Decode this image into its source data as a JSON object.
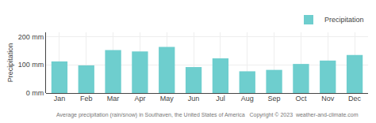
{
  "chart_data": {
    "type": "bar",
    "ylabel": "Precipitation",
    "categories": [
      "Jan",
      "Feb",
      "Mar",
      "Apr",
      "May",
      "Jun",
      "Jul",
      "Aug",
      "Sep",
      "Oct",
      "Nov",
      "Dec"
    ],
    "series": [
      {
        "name": "Precipitation",
        "color": "#6ecece",
        "values": [
          112,
          98,
          152,
          147,
          163,
          92,
          123,
          77,
          82,
          103,
          115,
          135
        ]
      }
    ],
    "ylim": [
      0,
      215
    ],
    "yticks": [
      {
        "value": 0,
        "label": "0 mm"
      },
      {
        "value": 100,
        "label": "100 mm"
      },
      {
        "value": 200,
        "label": "200 mm"
      }
    ],
    "grid": true,
    "legend": "upper right",
    "annotations": [
      "Average precipitation (rain/snow) in Southaven, the United States of America   Copyright © 2023  weather-and-climate.com"
    ]
  }
}
